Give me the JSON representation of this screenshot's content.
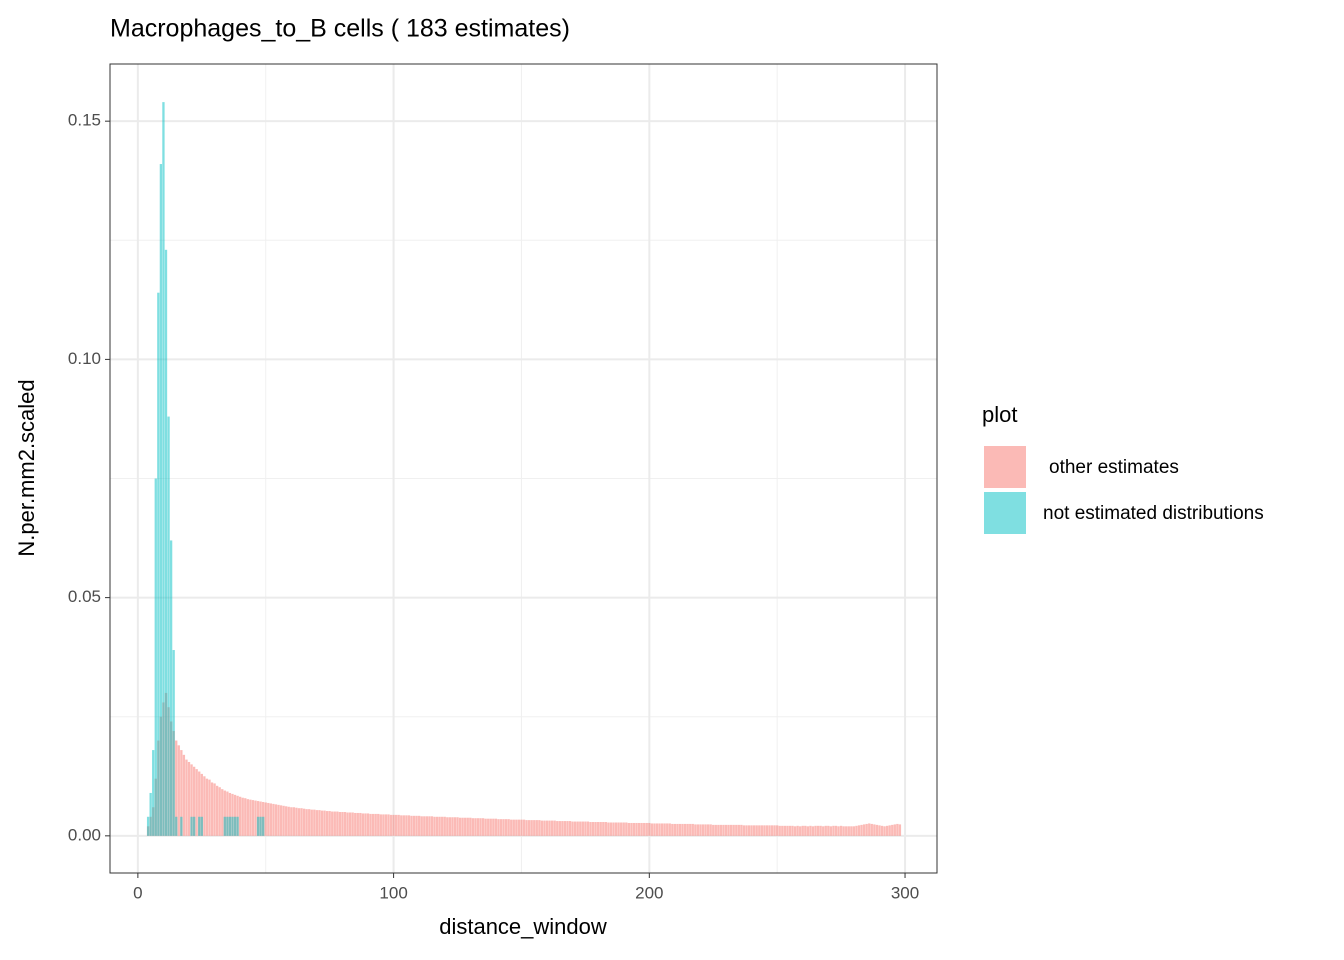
{
  "chart_data": {
    "type": "bar",
    "title": "Macrophages_to_B cells ( 183 estimates)",
    "x_label": "distance_window",
    "y_label": "N.per.mm2.scaled",
    "legend_title": "plot",
    "xlim": [
      -10.9,
      312.5
    ],
    "ylim": [
      -0.0078,
      0.162
    ],
    "xticks": [
      0,
      100,
      200,
      300
    ],
    "xminorticks": [
      50,
      150,
      250
    ],
    "yticks": [
      {
        "value": 0,
        "label": "0.00"
      },
      {
        "value": 0.05,
        "label": "0.05"
      },
      {
        "value": 0.1,
        "label": "0.10"
      },
      {
        "value": 0.15,
        "label": "0.15"
      }
    ],
    "yminorticks": [
      0.025,
      0.075,
      0.125
    ],
    "grid": true,
    "series": [
      {
        "name": "other estimates",
        "color": "#F8766D",
        "x": [
          4,
          5,
          6,
          7,
          8,
          9,
          10,
          11,
          12,
          13,
          14,
          15,
          16,
          17,
          18,
          19,
          20,
          21,
          22,
          23,
          24,
          25,
          26,
          27,
          28,
          29,
          30,
          31,
          32,
          33,
          34,
          35,
          36,
          37,
          38,
          39,
          40,
          41,
          42,
          43,
          44,
          45,
          46,
          47,
          48,
          49,
          50,
          51,
          52,
          53,
          54,
          55,
          56,
          57,
          58,
          59,
          60,
          61,
          62,
          63,
          64,
          65,
          66,
          67,
          68,
          69,
          70,
          71,
          72,
          73,
          74,
          75,
          76,
          77,
          78,
          79,
          80,
          81,
          82,
          83,
          84,
          85,
          86,
          87,
          88,
          89,
          90,
          91,
          92,
          93,
          94,
          95,
          96,
          97,
          98,
          99,
          100,
          101,
          102,
          103,
          104,
          105,
          106,
          107,
          108,
          109,
          110,
          111,
          112,
          113,
          114,
          115,
          116,
          117,
          118,
          119,
          120,
          121,
          122,
          123,
          124,
          125,
          126,
          127,
          128,
          129,
          130,
          131,
          132,
          133,
          134,
          135,
          136,
          137,
          138,
          139,
          140,
          141,
          142,
          143,
          144,
          145,
          146,
          147,
          148,
          149,
          150,
          151,
          152,
          153,
          154,
          155,
          156,
          157,
          158,
          159,
          160,
          161,
          162,
          163,
          164,
          165,
          166,
          167,
          168,
          169,
          170,
          171,
          172,
          173,
          174,
          175,
          176,
          177,
          178,
          179,
          180,
          181,
          182,
          183,
          184,
          185,
          186,
          187,
          188,
          189,
          190,
          191,
          192,
          193,
          194,
          195,
          196,
          197,
          198,
          199,
          200,
          201,
          202,
          203,
          204,
          205,
          206,
          207,
          208,
          209,
          210,
          211,
          212,
          213,
          214,
          215,
          216,
          217,
          218,
          219,
          220,
          221,
          222,
          223,
          224,
          225,
          226,
          227,
          228,
          229,
          230,
          231,
          232,
          233,
          234,
          235,
          236,
          237,
          238,
          239,
          240,
          241,
          242,
          243,
          244,
          245,
          246,
          247,
          248,
          249,
          250,
          251,
          252,
          253,
          254,
          255,
          256,
          257,
          258,
          259,
          260,
          261,
          262,
          263,
          264,
          265,
          266,
          267,
          268,
          269,
          270,
          271,
          272,
          273,
          274,
          275,
          276,
          277,
          278,
          279,
          280,
          281,
          282,
          283,
          284,
          285,
          286,
          287,
          288,
          289,
          290,
          291,
          292,
          293,
          294,
          295,
          296,
          297,
          298
        ],
        "values": [
          0.002,
          0.004,
          0.006,
          0.012,
          0.02,
          0.025,
          0.028,
          0.03,
          0.027,
          0.024,
          0.022,
          0.02,
          0.019,
          0.018,
          0.017,
          0.016,
          0.0155,
          0.015,
          0.0145,
          0.014,
          0.0135,
          0.013,
          0.0125,
          0.012,
          0.0118,
          0.0112,
          0.011,
          0.0105,
          0.0102,
          0.0098,
          0.0095,
          0.0093,
          0.009,
          0.0088,
          0.0086,
          0.0084,
          0.0082,
          0.008,
          0.0079,
          0.0077,
          0.0076,
          0.0075,
          0.0074,
          0.0073,
          0.0072,
          0.0071,
          0.007,
          0.0069,
          0.0068,
          0.0067,
          0.0066,
          0.0065,
          0.0064,
          0.0063,
          0.0062,
          0.0061,
          0.006,
          0.006,
          0.0059,
          0.0058,
          0.0058,
          0.0057,
          0.0056,
          0.0056,
          0.0055,
          0.0055,
          0.0054,
          0.0054,
          0.0053,
          0.0053,
          0.0052,
          0.0052,
          0.0051,
          0.0051,
          0.0051,
          0.005,
          0.005,
          0.005,
          0.0049,
          0.0049,
          0.0049,
          0.0048,
          0.0048,
          0.0048,
          0.0047,
          0.0047,
          0.0047,
          0.0046,
          0.0046,
          0.0046,
          0.0046,
          0.0045,
          0.0045,
          0.0045,
          0.0045,
          0.0044,
          0.0044,
          0.0044,
          0.0044,
          0.0043,
          0.0043,
          0.0043,
          0.0043,
          0.0042,
          0.0042,
          0.0042,
          0.0042,
          0.0041,
          0.0041,
          0.0041,
          0.0041,
          0.0041,
          0.004,
          0.004,
          0.004,
          0.004,
          0.004,
          0.0039,
          0.0039,
          0.0039,
          0.0039,
          0.0039,
          0.0038,
          0.0038,
          0.0038,
          0.0038,
          0.0038,
          0.0037,
          0.0037,
          0.0037,
          0.0037,
          0.0037,
          0.0036,
          0.0036,
          0.0036,
          0.0036,
          0.0036,
          0.0035,
          0.0035,
          0.0035,
          0.0035,
          0.0035,
          0.0034,
          0.0034,
          0.0034,
          0.0034,
          0.0034,
          0.0034,
          0.0033,
          0.0033,
          0.0033,
          0.0033,
          0.0033,
          0.0033,
          0.0032,
          0.0032,
          0.0032,
          0.0032,
          0.0032,
          0.0032,
          0.0031,
          0.0031,
          0.0031,
          0.0031,
          0.0031,
          0.0031,
          0.003,
          0.003,
          0.003,
          0.003,
          0.003,
          0.003,
          0.003,
          0.0029,
          0.0029,
          0.0029,
          0.0029,
          0.0029,
          0.0029,
          0.0029,
          0.0028,
          0.0028,
          0.0028,
          0.0028,
          0.0028,
          0.0028,
          0.0028,
          0.0028,
          0.0027,
          0.0027,
          0.0027,
          0.0027,
          0.0027,
          0.0027,
          0.0027,
          0.0027,
          0.0027,
          0.0026,
          0.0026,
          0.0026,
          0.0026,
          0.0026,
          0.0026,
          0.0026,
          0.0026,
          0.0025,
          0.0025,
          0.0025,
          0.0025,
          0.0025,
          0.0025,
          0.0025,
          0.0025,
          0.0025,
          0.0024,
          0.0024,
          0.0024,
          0.0024,
          0.0024,
          0.0024,
          0.0024,
          0.0023,
          0.0023,
          0.0023,
          0.0023,
          0.0023,
          0.0023,
          0.0023,
          0.0023,
          0.0023,
          0.0023,
          0.0023,
          0.0023,
          0.0022,
          0.0022,
          0.0022,
          0.0022,
          0.0022,
          0.0022,
          0.0022,
          0.0022,
          0.0022,
          0.0022,
          0.0022,
          0.0022,
          0.0022,
          0.0022,
          0.0021,
          0.0021,
          0.0021,
          0.0021,
          0.0021,
          0.0021,
          0.002,
          0.0021,
          0.002,
          0.0021,
          0.0021,
          0.002,
          0.0021,
          0.002,
          0.0021,
          0.0021,
          0.0021,
          0.002,
          0.0021,
          0.0021,
          0.002,
          0.0021,
          0.0021,
          0.002,
          0.0021,
          0.002,
          0.002,
          0.002,
          0.002,
          0.002,
          0.0021,
          0.0022,
          0.0023,
          0.0024,
          0.0025,
          0.0026,
          0.0025,
          0.0024,
          0.0023,
          0.0022,
          0.0021,
          0.002,
          0.0021,
          0.0022,
          0.0023,
          0.0024,
          0.0025,
          0.0024
        ]
      },
      {
        "name": "not estimated distributions",
        "color": "#00BFC4",
        "x": [
          4,
          5,
          6,
          7,
          8,
          9,
          10,
          11,
          12,
          13,
          14,
          15,
          17,
          21,
          22,
          24,
          25,
          34,
          35,
          36,
          37,
          38,
          39,
          47,
          48,
          49
        ],
        "values": [
          0.004,
          0.009,
          0.018,
          0.075,
          0.114,
          0.141,
          0.154,
          0.123,
          0.088,
          0.062,
          0.039,
          0.004,
          0.004,
          0.004,
          0.004,
          0.004,
          0.004,
          0.004,
          0.004,
          0.004,
          0.004,
          0.004,
          0.004,
          0.004,
          0.004,
          0.004
        ]
      }
    ]
  }
}
